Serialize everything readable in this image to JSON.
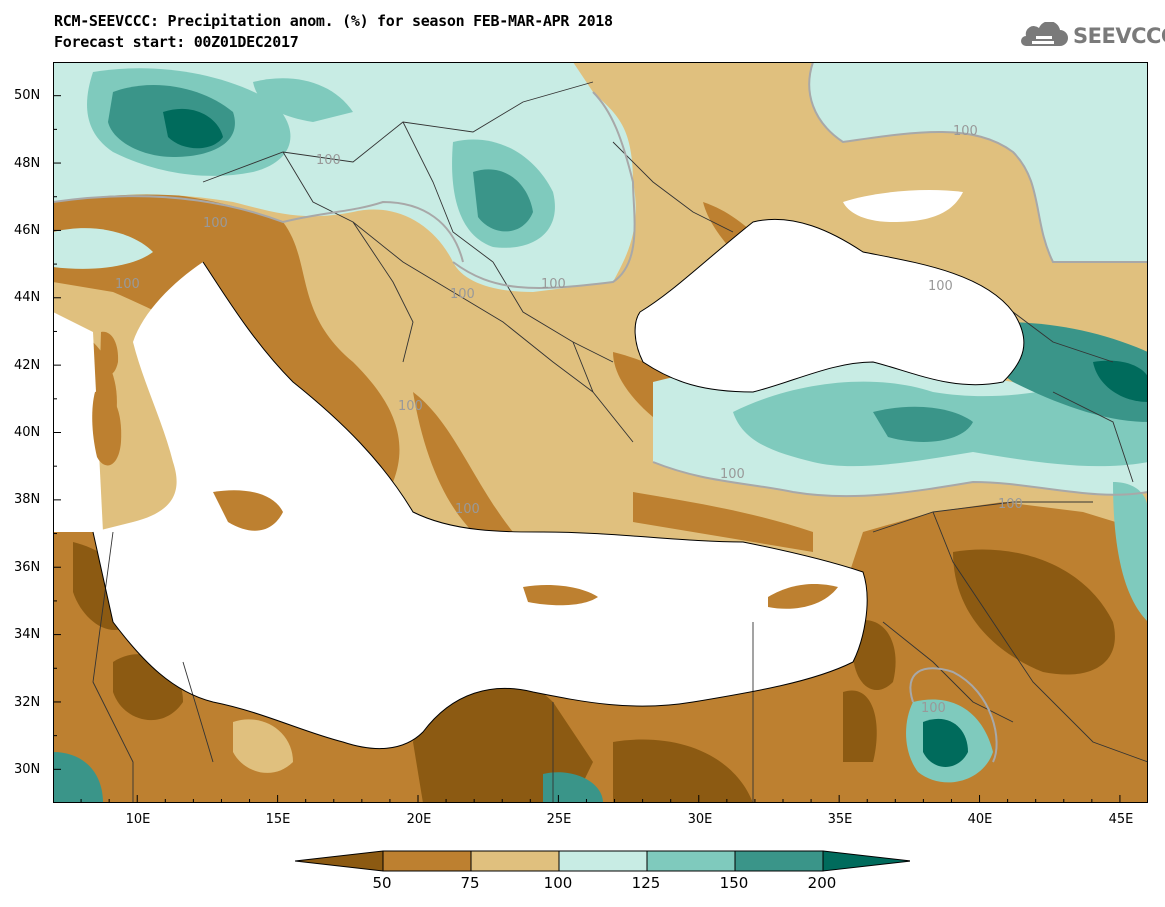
{
  "header": {
    "title_line1": "RCM-SEEVCCC: Precipitation anom. (%) for season FEB-MAR-APR 2018",
    "title_line2": "Forecast start: 00Z01DEC2017"
  },
  "logo": {
    "text": "SEEVCCC",
    "icon": "cloud-icon",
    "color": "#7a7a7a"
  },
  "map": {
    "lon_range": [
      7,
      46
    ],
    "lat_range": [
      29,
      51
    ],
    "x_ticks": [
      "10E",
      "15E",
      "20E",
      "25E",
      "30E",
      "35E",
      "40E",
      "45E"
    ],
    "y_ticks": [
      "50N",
      "48N",
      "46N",
      "44N",
      "42N",
      "40N",
      "38N",
      "36N",
      "34N",
      "32N",
      "30N"
    ],
    "contour_value": "100",
    "contour_labels": [
      "100",
      "100",
      "100",
      "100",
      "100",
      "100",
      "100",
      "100",
      "100",
      "100",
      "100",
      "100"
    ]
  },
  "colorbar": {
    "colors": [
      "#8c5a12",
      "#bd8030",
      "#e0c07e",
      "#c8ece4",
      "#7fcabd",
      "#3a9589",
      "#006b5c"
    ],
    "levels": [
      "50",
      "75",
      "100",
      "125",
      "150",
      "200"
    ]
  },
  "colors": {
    "sea": "#ffffff",
    "coastline": "#000000",
    "border": "#333333",
    "contour": "#a8a8a8"
  }
}
